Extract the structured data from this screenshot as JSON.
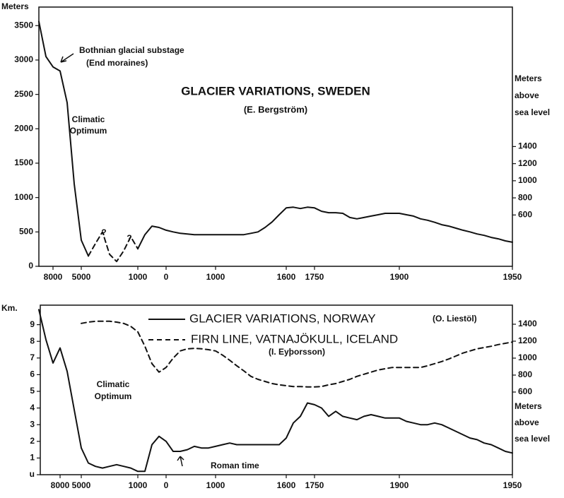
{
  "chart_data": [
    {
      "type": "line",
      "title": "GLACIER VARIATIONS, SWEDEN",
      "subtitle": "(E. Bergström)",
      "y_label": "Meters",
      "y2_label": [
        "Meters",
        "above",
        "sea level"
      ],
      "categories": [
        null,
        null,
        "8000",
        null,
        null,
        null,
        "5000",
        null,
        null,
        null,
        null,
        null,
        null,
        null,
        "1000",
        null,
        null,
        null,
        "0",
        null,
        null,
        null,
        null,
        null,
        null,
        "1000",
        null,
        null,
        null,
        null,
        null,
        null,
        null,
        null,
        null,
        "1600",
        null,
        null,
        null,
        "1750",
        null,
        null,
        null,
        null,
        null,
        null,
        null,
        null,
        null,
        null,
        null,
        "1900",
        null,
        null,
        null,
        null,
        null,
        null,
        null,
        null,
        null,
        null,
        null,
        null,
        null,
        null,
        null,
        "1950"
      ],
      "series": [
        {
          "color": "#111111",
          "dashed": false,
          "values": [
            3560,
            3050,
            2900,
            2840,
            2380,
            1200,
            380,
            150,
            null,
            null,
            null,
            null,
            null,
            null,
            255,
            460,
            585,
            565,
            525,
            500,
            480,
            470,
            460,
            460,
            460,
            460,
            460,
            460,
            460,
            460,
            480,
            500,
            565,
            645,
            750,
            850,
            860,
            840,
            860,
            850,
            800,
            780,
            780,
            770,
            710,
            690,
            710,
            730,
            750,
            770,
            770,
            770,
            750,
            730,
            690,
            670,
            640,
            605,
            585,
            555,
            525,
            500,
            470,
            450,
            420,
            400,
            370,
            350
          ]
        },
        {
          "color": "#111111",
          "dashed": true,
          "values": [
            null,
            null,
            null,
            null,
            null,
            null,
            null,
            150,
            330,
            500,
            175,
            70,
            225,
            430,
            255,
            null,
            null,
            null,
            null,
            null,
            null,
            null,
            null,
            null,
            null,
            null,
            null,
            null,
            null,
            null,
            null,
            null,
            null,
            null,
            null,
            null,
            null,
            null,
            null,
            null,
            null,
            null,
            null,
            null,
            null,
            null,
            null,
            null,
            null,
            null,
            null,
            null,
            null,
            null,
            null,
            null,
            null,
            null,
            null,
            null,
            null,
            null,
            null,
            null,
            null,
            null,
            null,
            null
          ]
        }
      ],
      "ylim": [
        0,
        3770
      ],
      "yticks": [
        0,
        500,
        1000,
        1500,
        2000,
        2500,
        3000,
        3500
      ],
      "y2lim": [
        0,
        3030
      ],
      "y2ticks": [
        600,
        800,
        1000,
        1200,
        1400
      ],
      "annotations": [
        {
          "lines": [
            "Bothnian glacial substage",
            "(End moraines)"
          ]
        },
        {
          "lines": [
            "Climatic",
            "Optimum"
          ]
        },
        {
          "lines": [
            "?"
          ]
        },
        {
          "lines": [
            "?"
          ]
        }
      ]
    },
    {
      "type": "line",
      "y_label": "Km.",
      "y2_label": [
        "Meters",
        "above",
        "sea level"
      ],
      "legend": "top",
      "categories": [
        null,
        null,
        null,
        "8000",
        null,
        null,
        "5000",
        null,
        null,
        null,
        null,
        null,
        null,
        null,
        "1000",
        null,
        null,
        null,
        "0",
        null,
        null,
        null,
        null,
        null,
        null,
        "1000",
        null,
        null,
        null,
        null,
        null,
        null,
        null,
        null,
        null,
        "1600",
        null,
        null,
        null,
        "1750",
        null,
        null,
        null,
        null,
        null,
        null,
        null,
        null,
        null,
        null,
        null,
        "1900",
        null,
        null,
        null,
        null,
        null,
        null,
        null,
        null,
        null,
        null,
        null,
        null,
        null,
        null,
        null,
        "1950"
      ],
      "series": [
        {
          "name": "GLACIER VARIATIONS, NORWAY",
          "source": "(O. Liestöl)",
          "color": "#111111",
          "dashed": false,
          "values": [
            9.9,
            8.1,
            6.7,
            7.6,
            6.2,
            3.9,
            1.6,
            0.7,
            0.5,
            0.4,
            0.5,
            0.6,
            0.5,
            0.4,
            0.2,
            0.2,
            1.8,
            2.3,
            2.0,
            1.4,
            1.4,
            1.5,
            1.7,
            1.6,
            1.6,
            1.7,
            1.8,
            1.9,
            1.8,
            1.8,
            1.8,
            1.8,
            1.8,
            1.8,
            1.8,
            2.2,
            3.1,
            3.5,
            4.3,
            4.2,
            4.0,
            3.5,
            3.8,
            3.5,
            3.4,
            3.3,
            3.5,
            3.6,
            3.5,
            3.4,
            3.4,
            3.4,
            3.2,
            3.1,
            3.0,
            3.0,
            3.1,
            3.0,
            2.8,
            2.6,
            2.4,
            2.2,
            2.1,
            1.9,
            1.8,
            1.6,
            1.4,
            1.3
          ]
        },
        {
          "name": "FIRN LINE, VATNAJÖKULL, ICELAND",
          "source": "(I. Eyþorsson)",
          "color": "#111111",
          "dashed": true,
          "axis": "y2",
          "values": [
            null,
            null,
            null,
            null,
            null,
            null,
            1410,
            1425,
            1435,
            1435,
            1435,
            1425,
            1410,
            1375,
            1310,
            1140,
            935,
            835,
            890,
            1000,
            1085,
            1110,
            1115,
            1110,
            1100,
            1085,
            1035,
            975,
            910,
            850,
            785,
            750,
            725,
            700,
            685,
            675,
            665,
            665,
            660,
            660,
            665,
            685,
            700,
            725,
            750,
            785,
            810,
            835,
            860,
            875,
            890,
            890,
            890,
            890,
            890,
            910,
            935,
            960,
            990,
            1025,
            1060,
            1085,
            1110,
            1125,
            1140,
            1160,
            1175,
            1190
          ]
        }
      ],
      "ylim": [
        0,
        10.17
      ],
      "yticks": [
        {
          "value": 0,
          "label": "u"
        },
        1,
        2,
        3,
        4,
        5,
        6,
        7,
        8,
        9
      ],
      "y2lim": [
        -375,
        1625
      ],
      "y2ticks": [
        600,
        800,
        1000,
        1200,
        1400
      ],
      "annotations": [
        {
          "lines": [
            "Climatic",
            "Optimum"
          ]
        },
        {
          "lines": [
            "Roman time"
          ]
        }
      ]
    }
  ]
}
